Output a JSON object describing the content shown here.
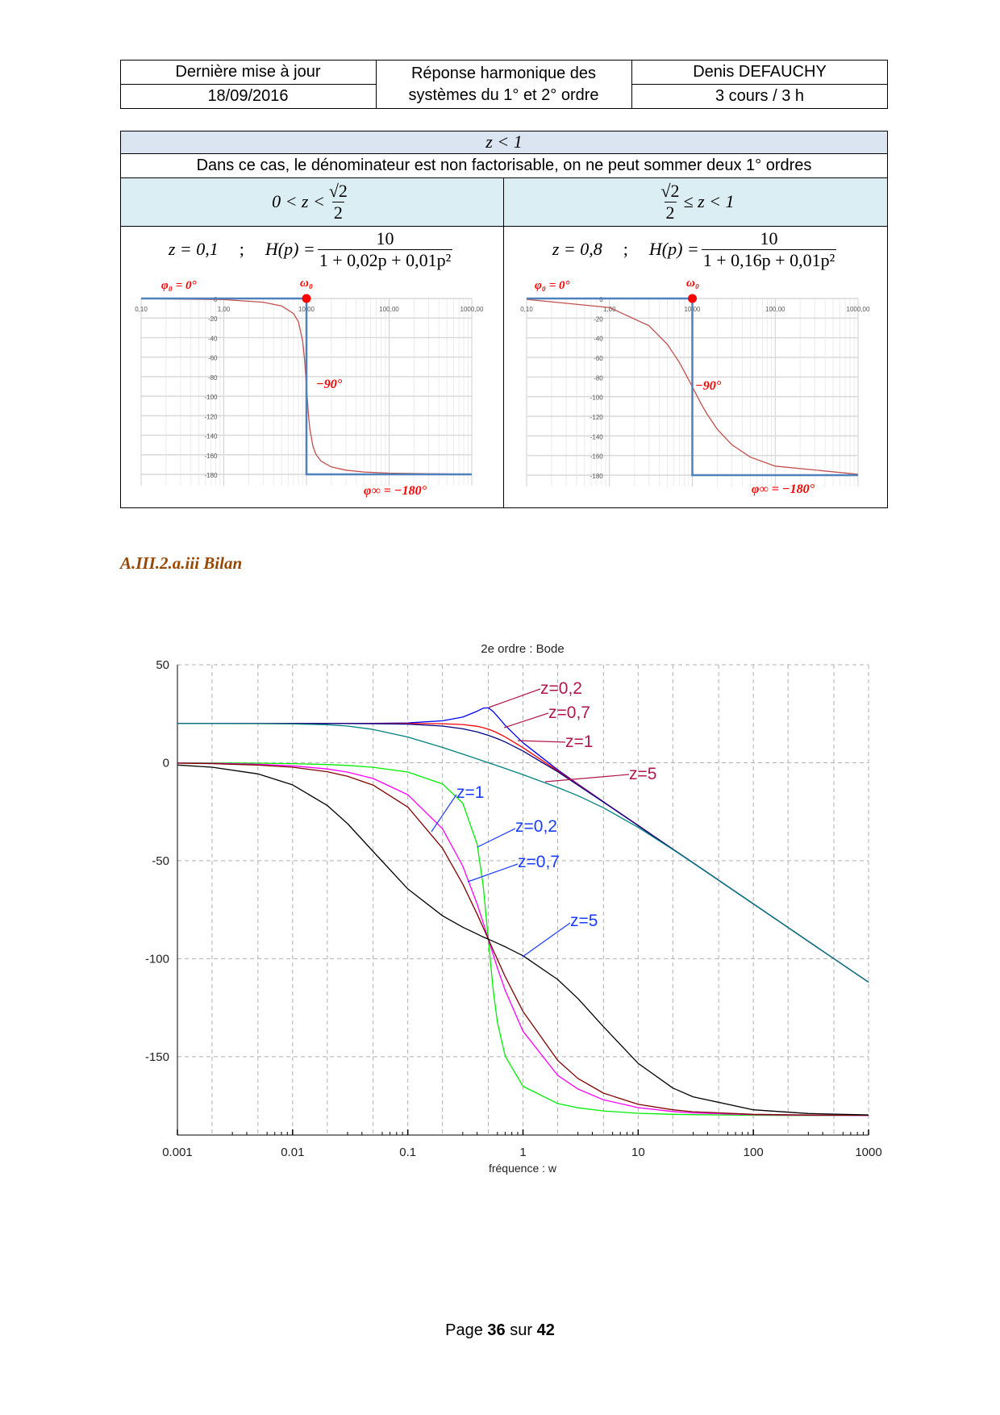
{
  "header": {
    "updated_label": "Dernière mise à jour",
    "updated_date": "18/09/2016",
    "title_line1": "Réponse harmonique des",
    "title_line2": "systèmes du 1° et 2° ordre",
    "author": "Denis DEFAUCHY",
    "course": "3 cours / 3 h"
  },
  "table": {
    "case_title": "z < 1",
    "description": "Dans ce cas, le dénominateur est non factorisable, on ne peut sommer deux 1° ordres",
    "left": {
      "condition_prefix": "0 < z <",
      "condition_num": "√2",
      "condition_den": "2",
      "z_text": "z = 0,1",
      "sep": ";",
      "h_text": "H(p) =",
      "num": "10",
      "den": "1 + 0,02p + 0,01p²",
      "phi0": "φ₀ = 0°",
      "omega0": "ω₀",
      "minus90": "−90°",
      "phiinf": "φ∞ = −180°"
    },
    "right": {
      "condition_num": "√2",
      "condition_den": "2",
      "condition_suffix": "≤ z < 1",
      "z_text": "z = 0,8",
      "sep": ";",
      "h_text": "H(p) =",
      "num": "10",
      "den": "1 + 0,16p + 0,01p²",
      "phi0": "φ₀ = 0°",
      "omega0": "ω₀",
      "minus90": "−90°",
      "phiinf": "φ∞ = −180°"
    }
  },
  "section_heading": "A.III.2.a.iii Bilan",
  "footer": {
    "prefix": "Page",
    "page": "36",
    "mid": "sur",
    "total": "42"
  },
  "chart_data": [
    {
      "id": "phase-z01",
      "type": "line",
      "xscale": "log",
      "xlim": [
        0.1,
        1000
      ],
      "ylim": [
        -180,
        0
      ],
      "xticks": [
        "0,10",
        "1,00",
        "10,00",
        "100,00",
        "1000,00"
      ],
      "yticks": [
        0,
        -20,
        -40,
        -60,
        -80,
        -100,
        -120,
        -140,
        -160,
        -180
      ],
      "grid": true,
      "omega0": 10,
      "series": [
        {
          "color": "#c0504d",
          "x": [
            0.1,
            1,
            3,
            5,
            7,
            8,
            9,
            9.5,
            10,
            10.5,
            11,
            12,
            13,
            15,
            20,
            30,
            50,
            100,
            1000
          ],
          "y": [
            -0.11,
            -1.16,
            -3.8,
            -7.6,
            -15.4,
            -24.0,
            -43.5,
            -62.8,
            -90,
            -116,
            -133.7,
            -151.4,
            -159.4,
            -166.5,
            -172.4,
            -175.7,
            -177.6,
            -178.8,
            -179.9
          ]
        },
        {
          "color": "#4f81bd",
          "x": [
            0.1,
            10,
            10,
            1000
          ],
          "y": [
            0,
            0,
            -180,
            -180
          ]
        }
      ]
    },
    {
      "id": "phase-z08",
      "type": "line",
      "xscale": "log",
      "xlim": [
        0.1,
        1000
      ],
      "ylim": [
        -180,
        0
      ],
      "xticks": [
        "0,10",
        "1,00",
        "10,00",
        "100,00",
        "1000,00"
      ],
      "yticks": [
        0,
        -20,
        -40,
        -60,
        -80,
        -100,
        -120,
        -140,
        -160,
        -180
      ],
      "grid": true,
      "omega0": 10,
      "series": [
        {
          "color": "#c0504d",
          "x": [
            0.1,
            1,
            3,
            5,
            7,
            8,
            9,
            9.5,
            10,
            10.5,
            11,
            12,
            13,
            15,
            20,
            30,
            50,
            100,
            1000
          ],
          "y": [
            -0.92,
            -9.2,
            -27.8,
            -46.8,
            -65.5,
            -74.3,
            -82.5,
            -86.3,
            -90,
            -93.5,
            -96.8,
            -102.9,
            -108.4,
            -117.5,
            -133.2,
            -149.0,
            -161.6,
            -170.8,
            -179.1
          ]
        },
        {
          "color": "#4f81bd",
          "x": [
            0.1,
            10,
            10,
            1000
          ],
          "y": [
            0,
            0,
            -180,
            -180
          ]
        }
      ]
    },
    {
      "id": "bode",
      "type": "line",
      "title": "2e ordre : Bode",
      "xlabel": "fréquence : w",
      "xscale": "log",
      "xlim": [
        0.001,
        1000
      ],
      "ylim": [
        -190,
        50
      ],
      "xticks": [
        "0.001",
        "0.01",
        "0.1",
        "1",
        "10",
        "100",
        "1000"
      ],
      "yticks": [
        50,
        0,
        -50,
        -100,
        -150
      ],
      "grid": true,
      "x": [
        0.001,
        0.002,
        0.005,
        0.01,
        0.02,
        0.03,
        0.05,
        0.1,
        0.2,
        0.3,
        0.4,
        0.45,
        0.5,
        0.55,
        0.6,
        0.7,
        1,
        2,
        3,
        5,
        10,
        20,
        30,
        100,
        300,
        1000
      ],
      "series": [
        {
          "group": "gain",
          "z": "0,2",
          "color": "#0000ff",
          "y": [
            20,
            20,
            20,
            20,
            20,
            20.03,
            20.08,
            20.3,
            21.4,
            23.3,
            26.3,
            27.8,
            28.0,
            26.2,
            23.7,
            19.1,
            10.2,
            -3.6,
            -10.9,
            -19.9,
            -32.0,
            -44.1,
            -51.1,
            -72.0,
            -91.1,
            -112.0
          ]
        },
        {
          "group": "gain",
          "z": "0,7",
          "color": "#ff0000",
          "y": [
            20,
            20,
            20,
            20,
            20,
            20,
            20,
            20,
            19.9,
            19.5,
            18.6,
            17.9,
            17.1,
            16.2,
            15.2,
            13.2,
            7.7,
            -4.1,
            -11.1,
            -20.0,
            -32.0,
            -44.1,
            -51.1,
            -72.0,
            -91.1,
            -112.0
          ]
        },
        {
          "group": "gain",
          "z": "1",
          "color": "#000080",
          "y": [
            20,
            20,
            20,
            20,
            20,
            20,
            19.9,
            19.7,
            18.7,
            17.3,
            15.7,
            14.8,
            14.0,
            13.1,
            12.3,
            10.6,
            6.0,
            -4.6,
            -11.4,
            -20.1,
            -32.1,
            -44.1,
            -51.1,
            -72.0,
            -91.1,
            -112.0
          ]
        },
        {
          "group": "gain",
          "z": "5",
          "color": "#008080",
          "y": [
            20,
            20,
            19.96,
            19.8,
            19.4,
            18.7,
            17.0,
            13.1,
            7.8,
            4.4,
            1.9,
            0.9,
            0.0,
            -0.8,
            -1.6,
            -2.9,
            -6.1,
            -12.6,
            -16.8,
            -23.0,
            -33.0,
            -44.3,
            -51.2,
            -72.0,
            -91.1,
            -112.0
          ]
        },
        {
          "group": "phase",
          "z": "0,2",
          "color": "#00ee00",
          "y": [
            -0.05,
            -0.09,
            -0.23,
            -0.46,
            -0.92,
            -1.38,
            -2.31,
            -4.76,
            -10.8,
            -20.6,
            -41.6,
            -62.2,
            -90,
            -115.5,
            -132.5,
            -149.7,
            -165.1,
            -173.9,
            -176.1,
            -177.7,
            -178.9,
            -179.4,
            -179.6,
            -179.9,
            -180,
            -180
          ]
        },
        {
          "group": "phase",
          "z": "0,7",
          "color": "#ff00ff",
          "y": [
            -0.16,
            -0.32,
            -0.8,
            -1.6,
            -3.2,
            -4.8,
            -8.05,
            -16.3,
            -33.7,
            -52.7,
            -72.2,
            -81.4,
            -90,
            -97.8,
            -104.7,
            -116.1,
            -137,
            -159.5,
            -166.5,
            -172,
            -176,
            -178,
            -178.7,
            -179.6,
            -179.9,
            -180
          ]
        },
        {
          "group": "phase",
          "z": "1",
          "color": "#800000",
          "y": [
            -0.23,
            -0.46,
            -1.15,
            -2.3,
            -4.6,
            -6.9,
            -11.4,
            -22.6,
            -43.6,
            -61.9,
            -77.3,
            -84.0,
            -90,
            -95.5,
            -100.4,
            -109.1,
            -126.9,
            -151.9,
            -161.1,
            -168.6,
            -174.3,
            -177.1,
            -178.1,
            -179.4,
            -179.8,
            -179.9
          ]
        },
        {
          "group": "phase",
          "z": "5",
          "color": "#000000",
          "y": [
            -1.15,
            -2.3,
            -5.7,
            -11.3,
            -21.8,
            -31.1,
            -45.3,
            -64.4,
            -78.1,
            -83.9,
            -87.4,
            -88.9,
            -90,
            -91.1,
            -92.1,
            -93.9,
            -98.5,
            -110.6,
            -120.3,
            -134.7,
            -153.4,
            -166.0,
            -170.5,
            -177.1,
            -179.0,
            -179.7
          ]
        }
      ],
      "annotations": {
        "gain": [
          "z=0,2",
          "z=0,7",
          "z=1",
          "z=5"
        ],
        "phase": [
          "z=1",
          "z=0,2",
          "z=0,7",
          "z=5"
        ],
        "gain_color": "#b0174a",
        "phase_color": "#1a3cff"
      }
    }
  ]
}
